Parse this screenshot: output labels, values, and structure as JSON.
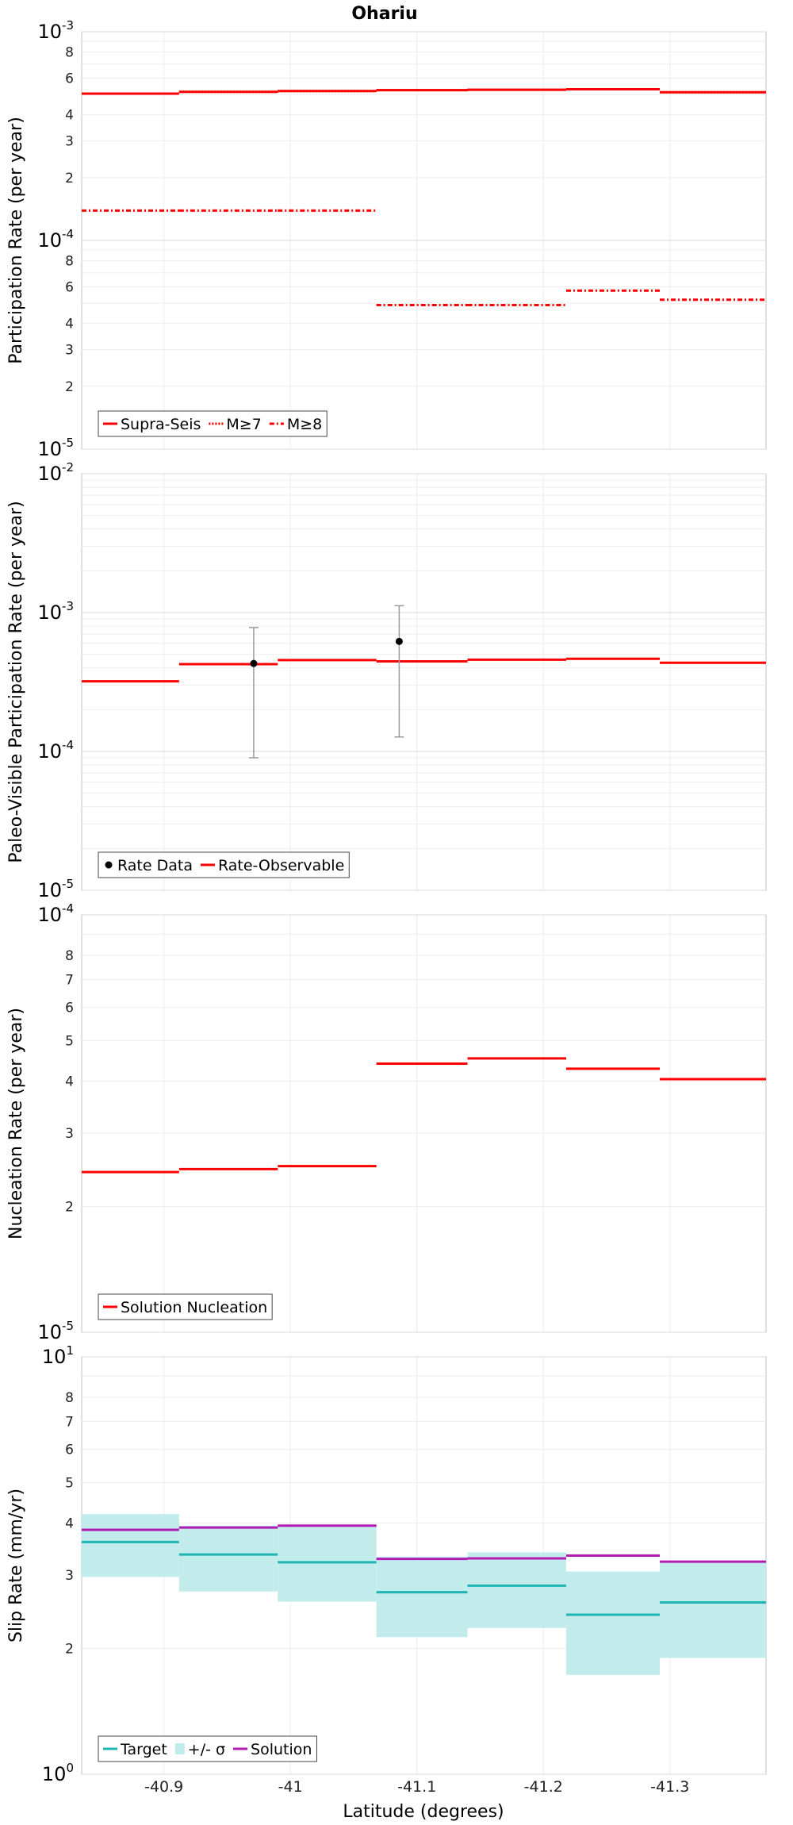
{
  "title": "Ohariu",
  "xlabel": "Latitude (degrees)",
  "x_ticks": [
    -40.9,
    -41,
    -41.1,
    -41.2,
    -41.3
  ],
  "x_range": [
    -40.835,
    -41.376
  ],
  "colors": {
    "red": "#ff0000",
    "cyan": "#1fb5b5",
    "cyan_fill": "#c2ecec",
    "magenta": "#b31cb3",
    "error_bar": "#9a9a9a",
    "point": "#000000"
  },
  "chart_data": [
    {
      "type": "line",
      "panel": "participation",
      "ylabel": "Participation Rate (per year)",
      "yscale": "log",
      "ylim": [
        1e-05,
        0.001
      ],
      "major_exponents": [
        -5,
        -4,
        -3
      ],
      "minor_labels": [
        2,
        3,
        4,
        6,
        8
      ],
      "x_bins": [
        [
          -40.835,
          -40.912
        ],
        [
          -40.912,
          -40.99
        ],
        [
          -40.99,
          -41.068
        ],
        [
          -41.068,
          -41.14
        ],
        [
          -41.14,
          -41.218
        ],
        [
          -41.218,
          -41.292
        ],
        [
          -41.292,
          -41.376
        ]
      ],
      "series": [
        {
          "name": "Supra-Seis",
          "style": "solid",
          "values": [
            0.000505,
            0.000515,
            0.00052,
            0.000525,
            0.000527,
            0.00053,
            0.000513
          ]
        },
        {
          "name": "M≥7",
          "style": "dotted",
          "values": [
            0.000505,
            0.000515,
            0.00052,
            0.000525,
            0.000527,
            0.00053,
            0.000513
          ]
        },
        {
          "name": "M≥8",
          "style": "dashdot",
          "values": [
            0.000139,
            0.000139,
            0.000139,
            4.9e-05,
            4.9e-05,
            5.75e-05,
            5.2e-05
          ]
        }
      ],
      "legend": [
        "Supra-Seis",
        "M≥7",
        "M≥8"
      ],
      "legend_position": "bottom-left"
    },
    {
      "type": "line",
      "panel": "paleo",
      "ylabel": "Paleo-Visible Participation Rate (per year)",
      "yscale": "log",
      "ylim": [
        1e-05,
        0.01
      ],
      "major_exponents": [
        -5,
        -4,
        -3,
        -2
      ],
      "minor_labels": [],
      "x_bins": [
        [
          -40.835,
          -40.912
        ],
        [
          -40.912,
          -40.99
        ],
        [
          -40.99,
          -41.068
        ],
        [
          -41.068,
          -41.14
        ],
        [
          -41.14,
          -41.218
        ],
        [
          -41.218,
          -41.292
        ],
        [
          -41.292,
          -41.376
        ]
      ],
      "series": [
        {
          "name": "Rate-Observable",
          "style": "solid",
          "values": [
            0.00032,
            0.000425,
            0.000455,
            0.000445,
            0.000458,
            0.000465,
            0.000435
          ]
        }
      ],
      "points": {
        "name": "Rate Data",
        "x": [
          -40.971,
          -41.086
        ],
        "y": [
          0.00043,
          0.00062
        ],
        "y_low": [
          9e-05,
          0.000127
        ],
        "y_high": [
          0.00078,
          0.00112
        ]
      },
      "legend": [
        "Rate Data",
        "Rate-Observable"
      ],
      "legend_position": "bottom-left"
    },
    {
      "type": "line",
      "panel": "nucleation",
      "ylabel": "Nucleation Rate (per year)",
      "yscale": "log",
      "ylim": [
        1e-05,
        0.0001
      ],
      "major_exponents": [
        -5,
        -4
      ],
      "minor_labels": [
        2,
        3,
        4,
        5,
        6,
        7,
        8
      ],
      "x_bins": [
        [
          -40.835,
          -40.912
        ],
        [
          -40.912,
          -40.99
        ],
        [
          -40.99,
          -41.068
        ],
        [
          -41.068,
          -41.14
        ],
        [
          -41.14,
          -41.218
        ],
        [
          -41.218,
          -41.292
        ],
        [
          -41.292,
          -41.376
        ]
      ],
      "series": [
        {
          "name": "Solution Nucleation",
          "style": "solid",
          "values": [
            2.42e-05,
            2.46e-05,
            2.5e-05,
            4.4e-05,
            4.53e-05,
            4.28e-05,
            4.04e-05
          ]
        }
      ],
      "legend": [
        "Solution Nucleation"
      ],
      "legend_position": "bottom-left"
    },
    {
      "type": "line",
      "panel": "slip",
      "ylabel": "Slip Rate (mm/yr)",
      "yscale": "log",
      "ylim": [
        1,
        10
      ],
      "major_exponents": [
        0,
        1
      ],
      "minor_labels": [
        2,
        3,
        4,
        5,
        6,
        7,
        8
      ],
      "x_bins": [
        [
          -40.835,
          -40.912
        ],
        [
          -40.912,
          -40.99
        ],
        [
          -40.99,
          -41.068
        ],
        [
          -41.068,
          -41.14
        ],
        [
          -41.14,
          -41.218
        ],
        [
          -41.218,
          -41.292
        ],
        [
          -41.292,
          -41.376
        ]
      ],
      "series": [
        {
          "name": "Target",
          "style": "solid",
          "values": [
            3.6,
            3.36,
            3.22,
            2.73,
            2.83,
            2.41,
            2.58
          ]
        },
        {
          "name": "Solution",
          "style": "solid",
          "values": [
            3.85,
            3.9,
            3.94,
            3.28,
            3.29,
            3.34,
            3.23
          ]
        }
      ],
      "band": {
        "name": "+/- σ",
        "low": [
          2.97,
          2.74,
          2.59,
          2.13,
          2.24,
          1.73,
          1.9
        ],
        "high": [
          4.2,
          3.94,
          3.94,
          3.32,
          3.4,
          3.06,
          3.22
        ]
      },
      "legend": [
        "Target",
        "+/- σ",
        "Solution"
      ],
      "legend_position": "bottom-left"
    }
  ]
}
